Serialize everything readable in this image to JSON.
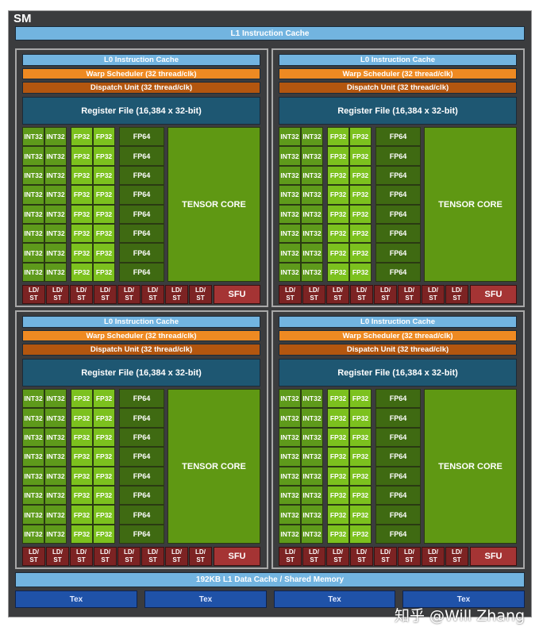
{
  "sm": {
    "title": "SM",
    "l1_instruction_cache": "L1 Instruction Cache",
    "partition": {
      "l0_cache": "L0 Instruction Cache",
      "warp_scheduler": "Warp Scheduler (32 thread/clk)",
      "dispatch_unit": "Dispatch Unit (32 thread/clk)",
      "register_file": "Register File (16,384 x 32-bit)",
      "int32": "INT32",
      "fp32": "FP32",
      "fp64": "FP64",
      "tensor_core": "TENSOR CORE",
      "ldst_line1": "LD/",
      "ldst_line2": "ST",
      "sfu": "SFU",
      "rows": 8,
      "ldst_count": 8
    },
    "partition_count": 4,
    "l1_data_cache": "192KB L1 Data Cache / Shared Memory",
    "tex_units": [
      "Tex",
      "Tex",
      "Tex",
      "Tex"
    ]
  },
  "watermark": "知乎 @Will Zhang",
  "colors": {
    "background": "#3b3c3e",
    "cache": "#72b4e0",
    "warp_scheduler": "#ee8a22",
    "dispatch": "#b3560f",
    "register_file": "#1e5772",
    "int32": "#5e9a1b",
    "fp32": "#7cc11e",
    "fp64": "#3f6a12",
    "tensor": "#5f9813",
    "ldst": "#7c2323",
    "sfu": "#a53434",
    "tex": "#1f52a8"
  }
}
